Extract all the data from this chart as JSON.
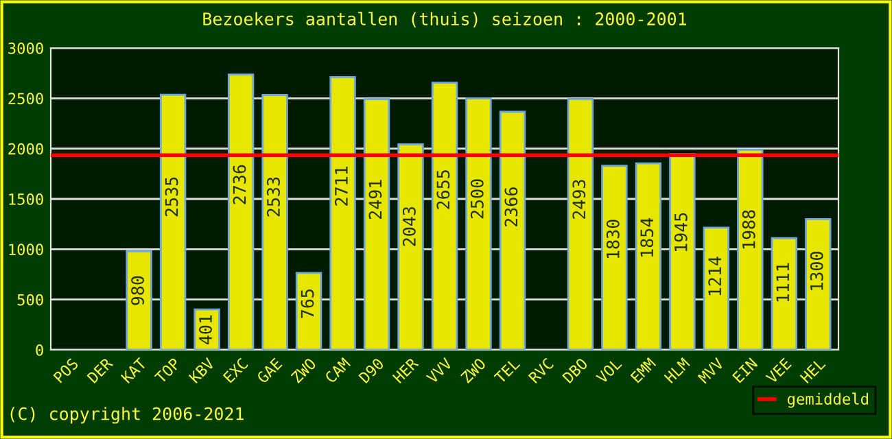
{
  "chart_data": {
    "type": "bar",
    "title": "Bezoekers aantallen (thuis) seizoen : 2000-2001",
    "categories": [
      "POS",
      "DER",
      "KAT",
      "TOP",
      "KBV",
      "EXC",
      "GAE",
      "ZWO",
      "CAM",
      "D90",
      "HER",
      "VVV",
      "ZWO",
      "TEL",
      "RVC",
      "DBO",
      "VOL",
      "EMM",
      "HLM",
      "MVV",
      "EIN",
      "VEE",
      "HEL"
    ],
    "values": [
      null,
      null,
      980,
      2535,
      401,
      2736,
      2533,
      765,
      2711,
      2491,
      2043,
      2655,
      2500,
      2366,
      null,
      2493,
      1830,
      1854,
      1945,
      1214,
      1988,
      1111,
      1300
    ],
    "color": "#e6e600",
    "data_labels": true,
    "ylim": [
      0,
      3000
    ],
    "yticks": [
      0,
      500,
      1000,
      1500,
      2000,
      2500,
      3000
    ],
    "grid": "y",
    "ref_lines": [
      {
        "axis": "y",
        "value": 1935,
        "label": "gemiddeld",
        "color": "#ff0000"
      }
    ],
    "legend": "bottom right",
    "annotations": [
      "(C) copyright 2006-2021"
    ]
  }
}
